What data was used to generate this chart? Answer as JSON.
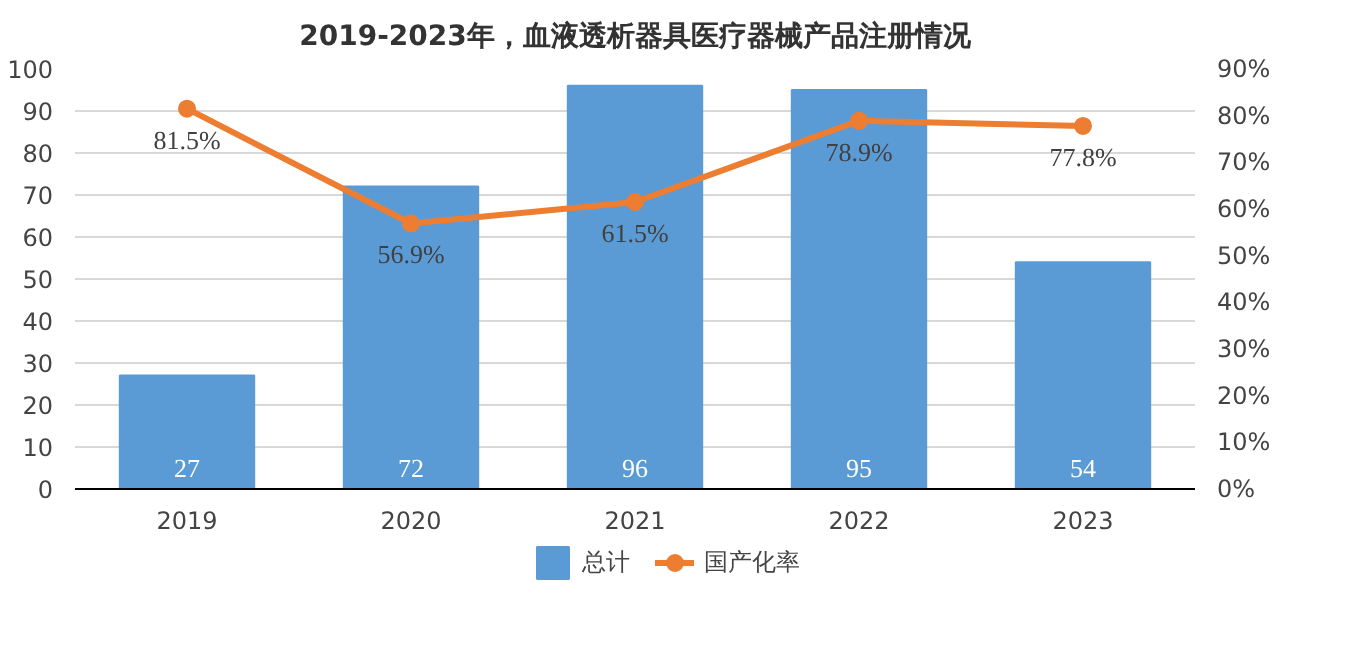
{
  "chart_data": {
    "type": "bar",
    "title": "2019-2023年，血液透析器具医疗器械产品注册情况",
    "categories": [
      "2019",
      "2020",
      "2021",
      "2022",
      "2023"
    ],
    "series": [
      {
        "name": "总计",
        "color": "#5b9bd5",
        "values": [
          27,
          72,
          96,
          95,
          54
        ],
        "data_labels": true
      },
      {
        "name": "国产化率",
        "type": "line",
        "axis": "y2",
        "color": "#ed7d31",
        "marker": "circle",
        "values": [
          81.5,
          56.9,
          61.5,
          78.9,
          77.8
        ],
        "value_labels": [
          "81.5%",
          "56.9%",
          "61.5%",
          "78.9%",
          "77.8%"
        ]
      }
    ],
    "ylim": [
      0,
      100
    ],
    "yticks": [
      0,
      10,
      20,
      30,
      40,
      50,
      60,
      70,
      80,
      90,
      100
    ],
    "y2lim": [
      0,
      90
    ],
    "y2ticks": [
      {
        "value": 0,
        "label": "0%"
      },
      {
        "value": 10,
        "label": "10%"
      },
      {
        "value": 20,
        "label": "20%"
      },
      {
        "value": 30,
        "label": "30%"
      },
      {
        "value": 40,
        "label": "40%"
      },
      {
        "value": 50,
        "label": "50%"
      },
      {
        "value": 60,
        "label": "60%"
      },
      {
        "value": 70,
        "label": "70%"
      },
      {
        "value": 80,
        "label": "80%"
      },
      {
        "value": 90,
        "label": "90%"
      }
    ],
    "grid": "y",
    "legend": "bottom",
    "line_style": "solid"
  }
}
